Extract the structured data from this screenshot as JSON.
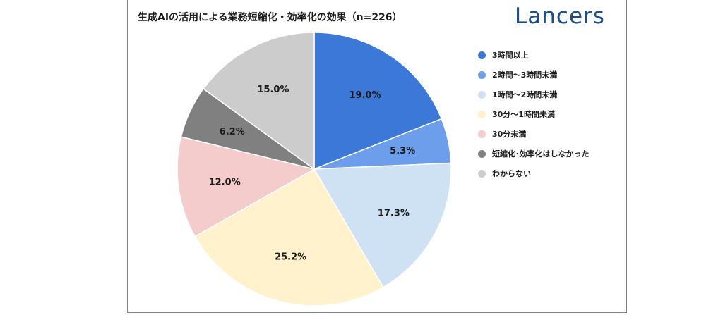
{
  "title": "生成AIの活用による業務短縮化・効率化の効果（n=226）",
  "brand": {
    "logo_text": "Lancers",
    "color": "#1c4e8a"
  },
  "chart_data": {
    "type": "pie",
    "title": "生成AIの活用による業務短縮化・効率化の効果（n=226）",
    "categories": [
      "3時間以上",
      "2時間～3時間未満",
      "1時間～2時間未満",
      "30分～1時間未満",
      "30分未満",
      "短縮化･効率化はしなかった",
      "わからない"
    ],
    "values": [
      19.0,
      5.3,
      17.3,
      25.2,
      12.0,
      6.2,
      15.0
    ],
    "labels": [
      "19.0%",
      "5.3%",
      "17.3%",
      "25.2%",
      "12.0%",
      "6.2%",
      "15.0%"
    ],
    "colors": [
      "#3c78d8",
      "#6d9eeb",
      "#cfe2f3",
      "#fff2cc",
      "#f4cccc",
      "#808080",
      "#cccccc"
    ],
    "legend_position": "right",
    "start": "top",
    "direction": "clockwise"
  }
}
